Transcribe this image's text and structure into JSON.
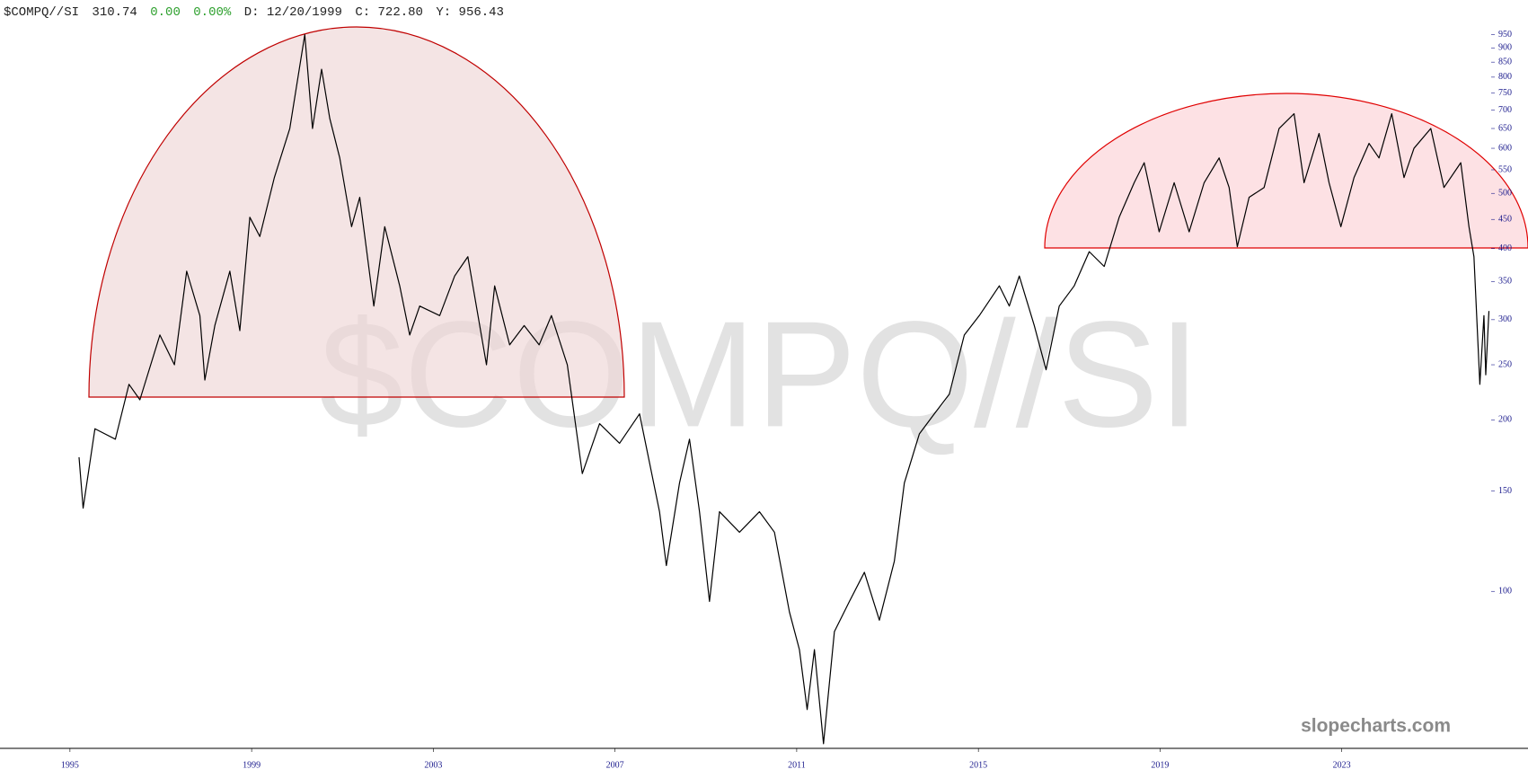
{
  "chart_data": {
    "type": "line",
    "header": {
      "symbol": "$COMPQ//SI",
      "last": "310.74",
      "change": "0.00",
      "change_pct": "0.00%",
      "date": "D: 12/20/1999",
      "close": "C: 722.80",
      "high": "Y: 956.43"
    },
    "watermark": "$COMPQ//SI",
    "brand": "slopecharts.com",
    "color": "#000000",
    "log_scale": true,
    "x": [
      1995.2,
      1995.29,
      1995.55,
      1996.0,
      1996.3,
      1996.54,
      1996.98,
      1997.3,
      1997.57,
      1997.86,
      1997.97,
      1998.19,
      1998.52,
      1998.74,
      1998.96,
      1999.18,
      1999.5,
      1999.84,
      2000.17,
      2000.34,
      2000.54,
      2000.72,
      2000.94,
      2001.2,
      2001.38,
      2001.69,
      2001.93,
      2002.26,
      2002.48,
      2002.7,
      2003.14,
      2003.47,
      2003.76,
      2004.17,
      2004.35,
      2004.68,
      2005.0,
      2005.33,
      2005.6,
      2005.95,
      2006.28,
      2006.66,
      2007.1,
      2007.54,
      2007.98,
      2008.13,
      2008.42,
      2008.64,
      2008.86,
      2009.08,
      2009.3,
      2009.74,
      2010.18,
      2010.51,
      2010.84,
      2011.06,
      2011.23,
      2011.39,
      2011.59,
      2011.83,
      2012.16,
      2012.49,
      2012.82,
      2013.15,
      2013.37,
      2013.7,
      2014.03,
      2014.36,
      2014.69,
      2015.02,
      2015.46,
      2015.68,
      2015.9,
      2016.23,
      2016.49,
      2016.78,
      2017.11,
      2017.44,
      2017.77,
      2018.1,
      2018.43,
      2018.65,
      2018.98,
      2019.31,
      2019.64,
      2019.97,
      2020.3,
      2020.52,
      2020.7,
      2020.96,
      2021.29,
      2021.62,
      2021.95,
      2022.17,
      2022.5,
      2022.72,
      2022.98,
      2023.27,
      2023.6,
      2023.82,
      2024.1,
      2024.37,
      2024.59,
      2024.96,
      2025.25,
      2025.62,
      2025.8,
      2025.91,
      2026.04,
      2026.13,
      2026.17,
      2026.24
    ],
    "values": [
      172,
      140,
      193,
      185,
      231,
      217,
      282,
      250,
      365,
      305,
      235,
      293,
      365,
      287,
      454,
      420,
      533,
      650,
      950,
      650,
      826,
      677,
      577,
      437,
      492,
      317,
      437,
      344,
      282,
      317,
      305,
      358,
      387,
      250,
      344,
      271,
      293,
      271,
      305,
      250,
      161,
      197,
      182,
      205,
      138,
      111,
      155,
      185,
      138,
      96,
      138,
      127,
      138,
      127,
      92,
      79,
      62,
      79,
      54,
      85,
      96,
      108,
      89,
      113,
      155,
      189,
      205,
      222,
      282,
      305,
      344,
      317,
      358,
      293,
      245,
      317,
      344,
      395,
      372,
      454,
      522,
      566,
      428,
      522,
      428,
      522,
      577,
      512,
      403,
      492,
      512,
      650,
      690,
      522,
      637,
      522,
      437,
      533,
      612,
      577,
      690,
      533,
      600,
      650,
      512,
      566,
      437,
      387,
      231,
      305,
      240,
      310.74
    ],
    "xlim": [
      1993.46,
      2027.1
    ],
    "xticks": [
      1995,
      1999,
      2003,
      2007,
      2011,
      2015,
      2019,
      2023
    ],
    "ylim": [
      53,
      980
    ],
    "yticks": [
      100,
      150,
      200,
      250,
      300,
      350,
      400,
      450,
      500,
      550,
      600,
      650,
      700,
      750,
      800,
      850,
      900,
      950
    ]
  }
}
